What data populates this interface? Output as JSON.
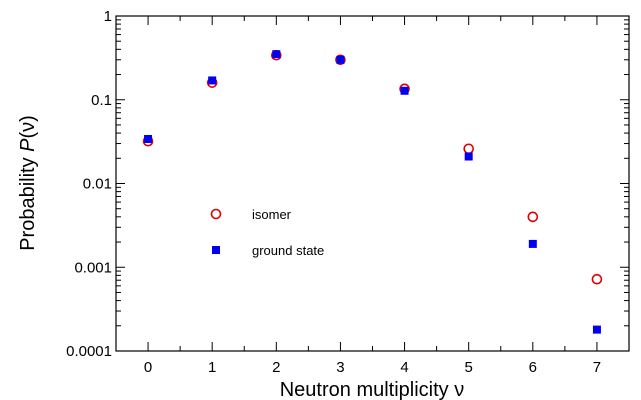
{
  "chart_data": {
    "type": "scatter",
    "xlabel": "Neutron multiplicity ν",
    "ylabel_prefix": "Probability ",
    "ylabel_symbol": "P",
    "ylabel_suffix": "(ν)",
    "xlim": [
      -0.5,
      7.5
    ],
    "ylim": [
      0.0001,
      1
    ],
    "yscale": "log",
    "grid": false,
    "legend_position": "center-left",
    "x_ticks": [
      0,
      1,
      2,
      3,
      4,
      5,
      6,
      7
    ],
    "x_tick_labels": [
      "0",
      "1",
      "2",
      "3",
      "4",
      "5",
      "6",
      "7"
    ],
    "y_ticks": [
      0.0001,
      0.001,
      0.01,
      0.1,
      1
    ],
    "y_tick_labels": [
      "0.0001",
      "0.001",
      "0.01",
      "0.1",
      "1"
    ],
    "x": [
      0,
      1,
      2,
      3,
      4,
      5,
      6,
      7
    ],
    "series": [
      {
        "name": "isomer",
        "marker": "open-circle",
        "color": "#e00000",
        "values": [
          0.032,
          0.16,
          0.34,
          0.3,
          0.135,
          0.026,
          0.004,
          0.00072
        ]
      },
      {
        "name": "ground state",
        "marker": "filled-square",
        "color": "#0000ee",
        "values": [
          0.034,
          0.17,
          0.35,
          0.3,
          0.128,
          0.021,
          0.0019,
          0.00018
        ]
      }
    ]
  }
}
